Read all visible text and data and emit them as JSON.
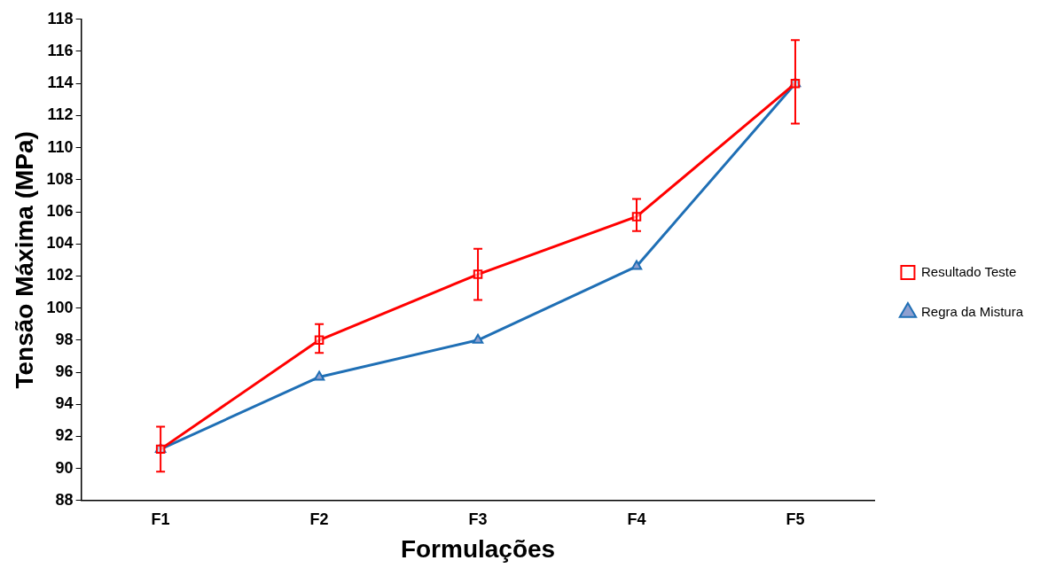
{
  "chart_data": {
    "type": "line",
    "xlabel": "Formulações",
    "ylabel": "Tensão Máxima (MPa)",
    "categories": [
      "F1",
      "F2",
      "F3",
      "F4",
      "F5"
    ],
    "series": [
      {
        "name": "Resultado Teste",
        "color": "#ff0000",
        "marker": "square",
        "values": [
          91.2,
          98.0,
          102.1,
          105.7,
          114.0
        ],
        "errors": [
          [
            89.8,
            92.6
          ],
          [
            97.2,
            99.0
          ],
          [
            100.5,
            103.7
          ],
          [
            104.8,
            106.8
          ],
          [
            111.5,
            116.7
          ]
        ]
      },
      {
        "name": "Regra da Mistura",
        "color": "#1f6fb5",
        "marker": "triangle",
        "values": [
          91.2,
          95.7,
          98.0,
          102.6,
          114.0
        ]
      }
    ],
    "ylim": [
      88,
      118
    ],
    "yticks": [
      88,
      90,
      92,
      94,
      96,
      98,
      100,
      102,
      104,
      106,
      108,
      110,
      112,
      114,
      116,
      118
    ],
    "grid": false,
    "legend": "right"
  }
}
